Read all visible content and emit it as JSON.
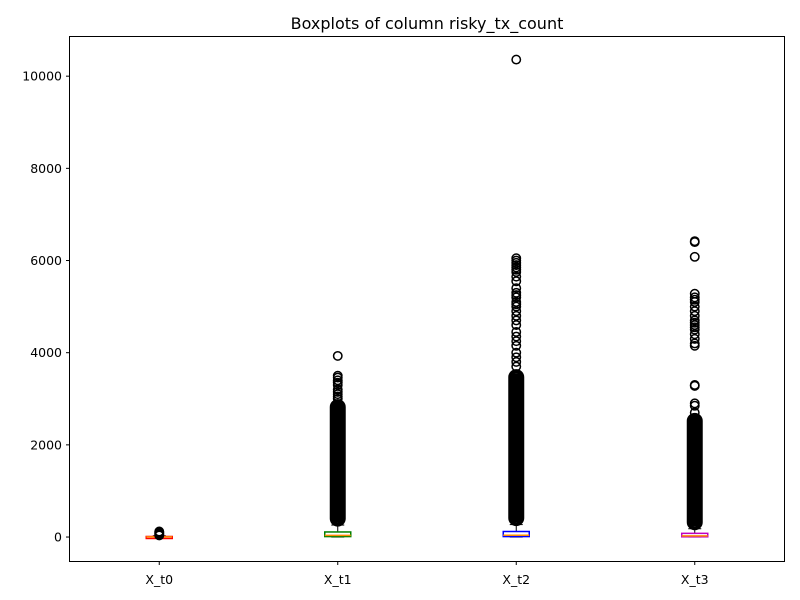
{
  "chart_data": {
    "type": "boxplot",
    "title": "Boxplots of column risky_tx_count",
    "xlabel": "",
    "ylabel": "",
    "ylim": [
      -520,
      10850
    ],
    "yticks": [
      0,
      2000,
      4000,
      6000,
      8000,
      10000
    ],
    "grid": false,
    "legend": "none",
    "categories": [
      "X_t0",
      "X_t1",
      "X_t2",
      "X_t3"
    ],
    "series": [
      {
        "label": "X_t0",
        "color": "#ff0000",
        "whisker_low": 0,
        "q1": 1,
        "median": 3,
        "q3": 12,
        "whisker_high": 28,
        "outliers": [
          35,
          45,
          60,
          75,
          90,
          105,
          120
        ],
        "outlier_band": null
      },
      {
        "label": "X_t1",
        "color": "#008000",
        "whisker_low": 0,
        "q1": 10,
        "median": 35,
        "q3": 110,
        "whisker_high": 260,
        "outliers": [
          3000,
          3050,
          3100,
          3150,
          3200,
          3300,
          3350,
          3400,
          3460,
          3500,
          3930
        ],
        "outlier_band": [
          270,
          2950
        ]
      },
      {
        "label": "X_t2",
        "color": "#0000ff",
        "whisker_low": 0,
        "q1": 10,
        "median": 40,
        "q3": 120,
        "whisker_high": 270,
        "outliers": [
          3700,
          3800,
          3900,
          4000,
          4150,
          4250,
          4350,
          4450,
          4600,
          4700,
          4800,
          4900,
          5000,
          5050,
          5100,
          5200,
          5250,
          5300,
          5400,
          5550,
          5650,
          5750,
          5800,
          5850,
          5900,
          5950,
          6000,
          6050,
          10360
        ],
        "outlier_band": [
          280,
          3600
        ]
      },
      {
        "label": "X_t3",
        "color": "#bf00bf",
        "whisker_low": 0,
        "q1": 5,
        "median": 25,
        "q3": 80,
        "whisker_high": 180,
        "outliers": [
          2700,
          2850,
          2900,
          3280,
          3300,
          4150,
          4200,
          4300,
          4400,
          4500,
          4550,
          4600,
          4650,
          4700,
          4800,
          4900,
          5000,
          5100,
          5150,
          5200,
          5280,
          6080,
          6400,
          6420
        ],
        "outlier_band": [
          190,
          2650
        ]
      }
    ]
  }
}
